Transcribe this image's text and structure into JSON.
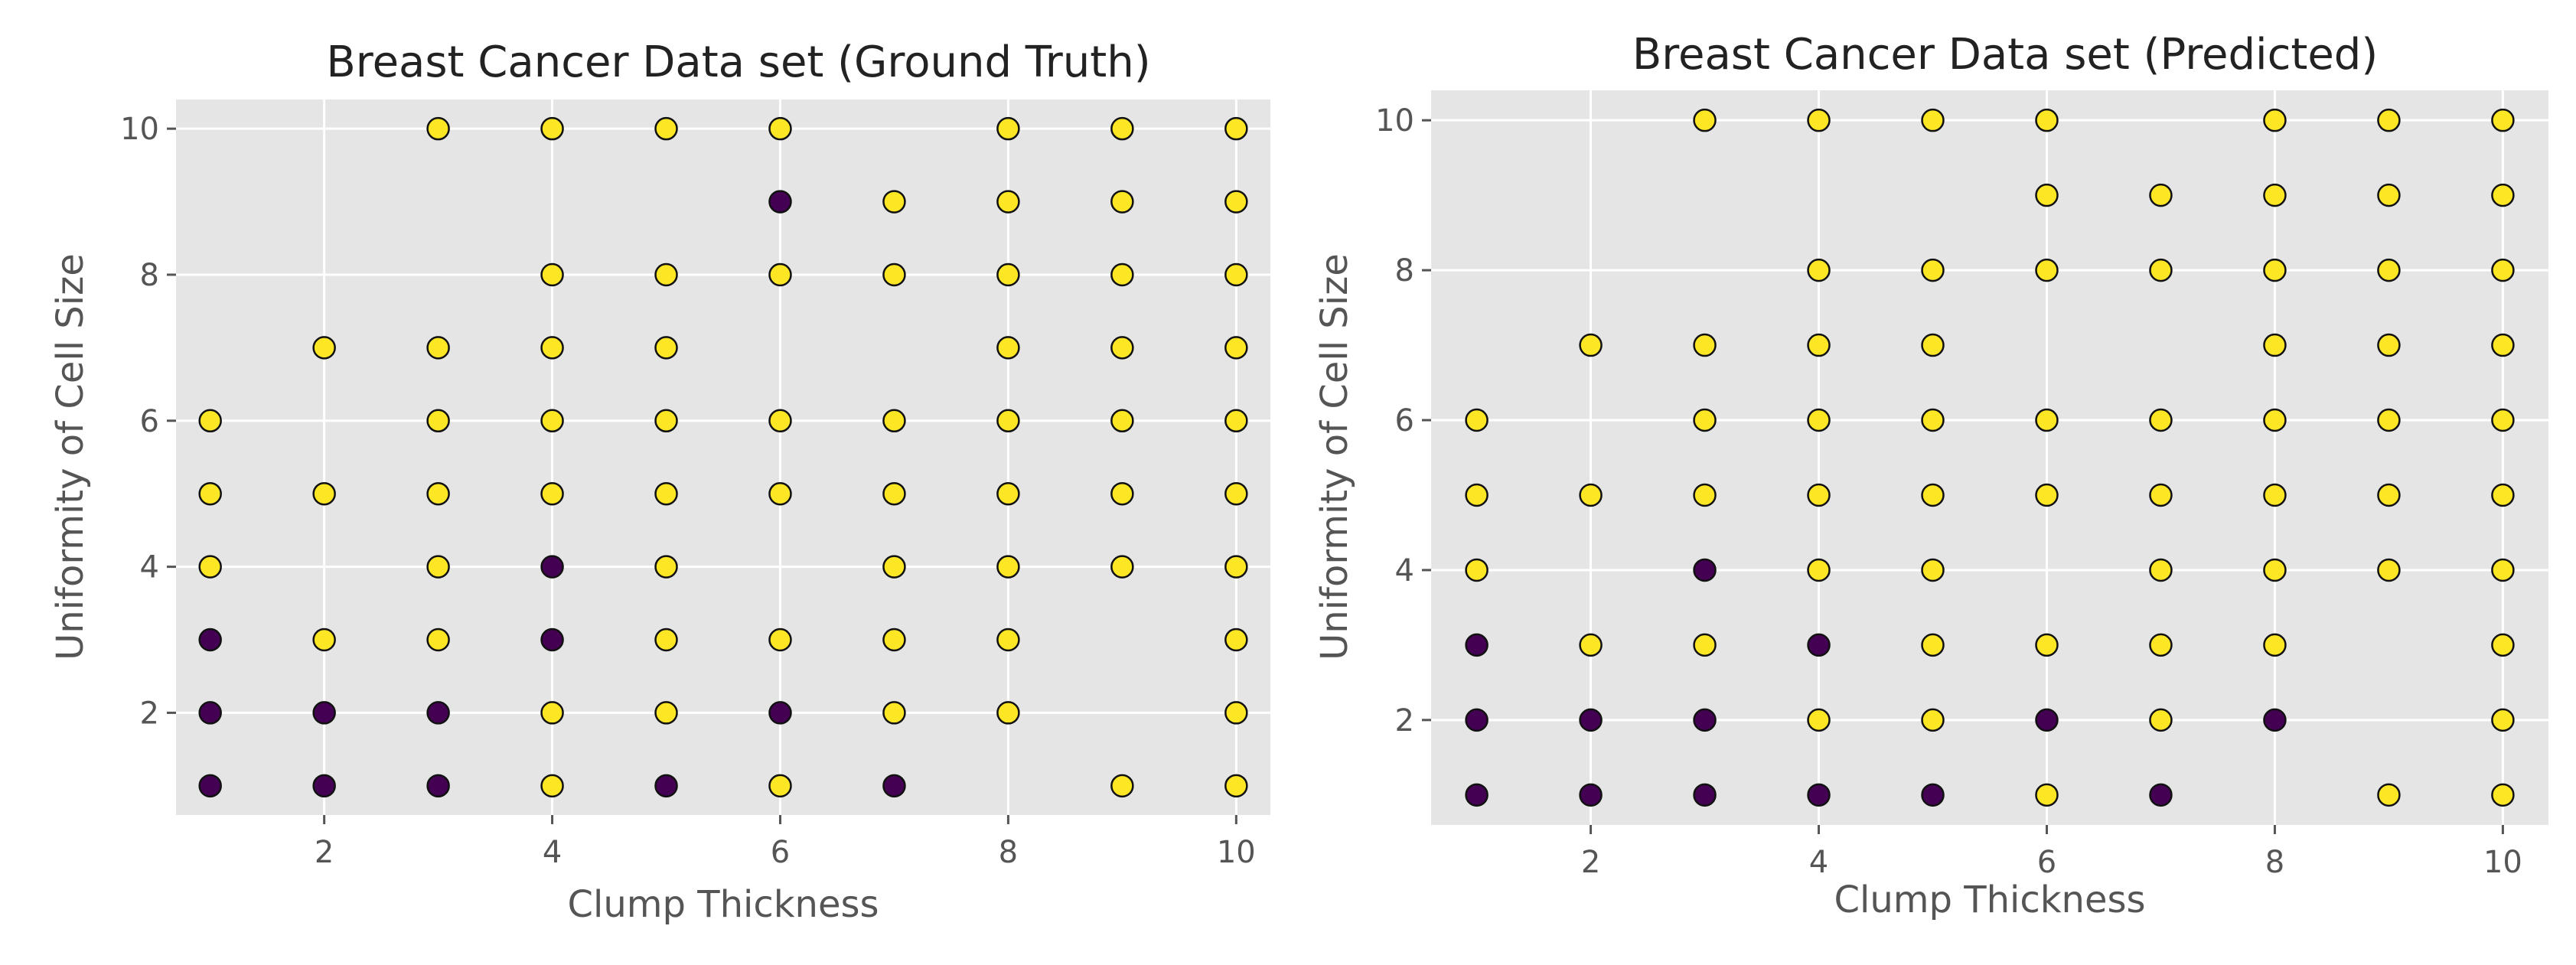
{
  "colors": {
    "benign": "#440154",
    "malignant": "#fde725",
    "background": "#e5e5e5",
    "grid": "#ffffff"
  },
  "chart_data": [
    {
      "type": "scatter",
      "title": "Breast Cancer Data set (Ground Truth)",
      "xlabel": "Clump Thickness",
      "ylabel": "Uniformity of Cell Size",
      "xlim": [
        0.7,
        10.3
      ],
      "ylim": [
        0.6,
        10.4
      ],
      "xticks": [
        2,
        4,
        6,
        8,
        10
      ],
      "yticks": [
        2,
        4,
        6,
        8,
        10
      ],
      "grid": true,
      "legend": "none",
      "points": [
        [
          1,
          1,
          0
        ],
        [
          1,
          2,
          0
        ],
        [
          1,
          3,
          0
        ],
        [
          1,
          4,
          1
        ],
        [
          1,
          5,
          1
        ],
        [
          1,
          6,
          1
        ],
        [
          2,
          1,
          0
        ],
        [
          2,
          2,
          0
        ],
        [
          2,
          3,
          1
        ],
        [
          2,
          5,
          1
        ],
        [
          2,
          7,
          1
        ],
        [
          3,
          1,
          0
        ],
        [
          3,
          2,
          0
        ],
        [
          3,
          3,
          1
        ],
        [
          3,
          4,
          1
        ],
        [
          3,
          5,
          1
        ],
        [
          3,
          6,
          1
        ],
        [
          3,
          7,
          1
        ],
        [
          3,
          10,
          1
        ],
        [
          4,
          1,
          1
        ],
        [
          4,
          2,
          1
        ],
        [
          4,
          3,
          0
        ],
        [
          4,
          4,
          0
        ],
        [
          4,
          5,
          1
        ],
        [
          4,
          6,
          1
        ],
        [
          4,
          7,
          1
        ],
        [
          4,
          8,
          1
        ],
        [
          4,
          10,
          1
        ],
        [
          5,
          1,
          0
        ],
        [
          5,
          2,
          1
        ],
        [
          5,
          3,
          1
        ],
        [
          5,
          4,
          1
        ],
        [
          5,
          5,
          1
        ],
        [
          5,
          6,
          1
        ],
        [
          5,
          7,
          1
        ],
        [
          5,
          8,
          1
        ],
        [
          5,
          10,
          1
        ],
        [
          6,
          1,
          1
        ],
        [
          6,
          2,
          0
        ],
        [
          6,
          3,
          1
        ],
        [
          6,
          5,
          1
        ],
        [
          6,
          6,
          1
        ],
        [
          6,
          8,
          1
        ],
        [
          6,
          9,
          0
        ],
        [
          6,
          10,
          1
        ],
        [
          7,
          1,
          0
        ],
        [
          7,
          2,
          1
        ],
        [
          7,
          3,
          1
        ],
        [
          7,
          4,
          1
        ],
        [
          7,
          5,
          1
        ],
        [
          7,
          6,
          1
        ],
        [
          7,
          8,
          1
        ],
        [
          7,
          9,
          1
        ],
        [
          8,
          2,
          1
        ],
        [
          8,
          3,
          1
        ],
        [
          8,
          4,
          1
        ],
        [
          8,
          5,
          1
        ],
        [
          8,
          6,
          1
        ],
        [
          8,
          7,
          1
        ],
        [
          8,
          8,
          1
        ],
        [
          8,
          9,
          1
        ],
        [
          8,
          10,
          1
        ],
        [
          9,
          1,
          1
        ],
        [
          9,
          4,
          1
        ],
        [
          9,
          5,
          1
        ],
        [
          9,
          6,
          1
        ],
        [
          9,
          7,
          1
        ],
        [
          9,
          8,
          1
        ],
        [
          9,
          9,
          1
        ],
        [
          9,
          10,
          1
        ],
        [
          10,
          1,
          1
        ],
        [
          10,
          2,
          1
        ],
        [
          10,
          3,
          1
        ],
        [
          10,
          4,
          1
        ],
        [
          10,
          5,
          1
        ],
        [
          10,
          6,
          1
        ],
        [
          10,
          7,
          1
        ],
        [
          10,
          8,
          1
        ],
        [
          10,
          9,
          1
        ],
        [
          10,
          10,
          1
        ]
      ]
    },
    {
      "type": "scatter",
      "title": "Breast Cancer Data set (Predicted)",
      "xlabel": "Clump Thickness",
      "ylabel": "Uniformity of Cell Size",
      "xlim": [
        0.6,
        10.4
      ],
      "ylim": [
        0.6,
        10.4
      ],
      "xticks": [
        2,
        4,
        6,
        8,
        10
      ],
      "yticks": [
        2,
        4,
        6,
        8,
        10
      ],
      "grid": true,
      "legend": "none",
      "points": [
        [
          1,
          1,
          0
        ],
        [
          1,
          2,
          0
        ],
        [
          1,
          3,
          0
        ],
        [
          1,
          4,
          1
        ],
        [
          1,
          5,
          1
        ],
        [
          1,
          6,
          1
        ],
        [
          2,
          1,
          0
        ],
        [
          2,
          2,
          0
        ],
        [
          2,
          3,
          1
        ],
        [
          2,
          5,
          1
        ],
        [
          2,
          7,
          1
        ],
        [
          3,
          1,
          0
        ],
        [
          3,
          2,
          0
        ],
        [
          3,
          3,
          1
        ],
        [
          3,
          4,
          0
        ],
        [
          3,
          5,
          1
        ],
        [
          3,
          6,
          1
        ],
        [
          3,
          7,
          1
        ],
        [
          3,
          10,
          1
        ],
        [
          4,
          1,
          0
        ],
        [
          4,
          2,
          1
        ],
        [
          4,
          3,
          0
        ],
        [
          4,
          4,
          1
        ],
        [
          4,
          5,
          1
        ],
        [
          4,
          6,
          1
        ],
        [
          4,
          7,
          1
        ],
        [
          4,
          8,
          1
        ],
        [
          4,
          10,
          1
        ],
        [
          5,
          1,
          0
        ],
        [
          5,
          2,
          1
        ],
        [
          5,
          3,
          1
        ],
        [
          5,
          4,
          1
        ],
        [
          5,
          5,
          1
        ],
        [
          5,
          6,
          1
        ],
        [
          5,
          7,
          1
        ],
        [
          5,
          8,
          1
        ],
        [
          5,
          10,
          1
        ],
        [
          6,
          1,
          1
        ],
        [
          6,
          2,
          0
        ],
        [
          6,
          3,
          1
        ],
        [
          6,
          5,
          1
        ],
        [
          6,
          6,
          1
        ],
        [
          6,
          8,
          1
        ],
        [
          6,
          9,
          1
        ],
        [
          6,
          10,
          1
        ],
        [
          7,
          1,
          0
        ],
        [
          7,
          2,
          1
        ],
        [
          7,
          3,
          1
        ],
        [
          7,
          4,
          1
        ],
        [
          7,
          5,
          1
        ],
        [
          7,
          6,
          1
        ],
        [
          7,
          8,
          1
        ],
        [
          7,
          9,
          1
        ],
        [
          8,
          2,
          0
        ],
        [
          8,
          3,
          1
        ],
        [
          8,
          4,
          1
        ],
        [
          8,
          5,
          1
        ],
        [
          8,
          6,
          1
        ],
        [
          8,
          7,
          1
        ],
        [
          8,
          8,
          1
        ],
        [
          8,
          9,
          1
        ],
        [
          8,
          10,
          1
        ],
        [
          9,
          1,
          1
        ],
        [
          9,
          4,
          1
        ],
        [
          9,
          5,
          1
        ],
        [
          9,
          6,
          1
        ],
        [
          9,
          7,
          1
        ],
        [
          9,
          8,
          1
        ],
        [
          9,
          9,
          1
        ],
        [
          9,
          10,
          1
        ],
        [
          10,
          1,
          1
        ],
        [
          10,
          2,
          1
        ],
        [
          10,
          3,
          1
        ],
        [
          10,
          4,
          1
        ],
        [
          10,
          5,
          1
        ],
        [
          10,
          6,
          1
        ],
        [
          10,
          7,
          1
        ],
        [
          10,
          8,
          1
        ],
        [
          10,
          9,
          1
        ],
        [
          10,
          10,
          1
        ]
      ]
    }
  ]
}
